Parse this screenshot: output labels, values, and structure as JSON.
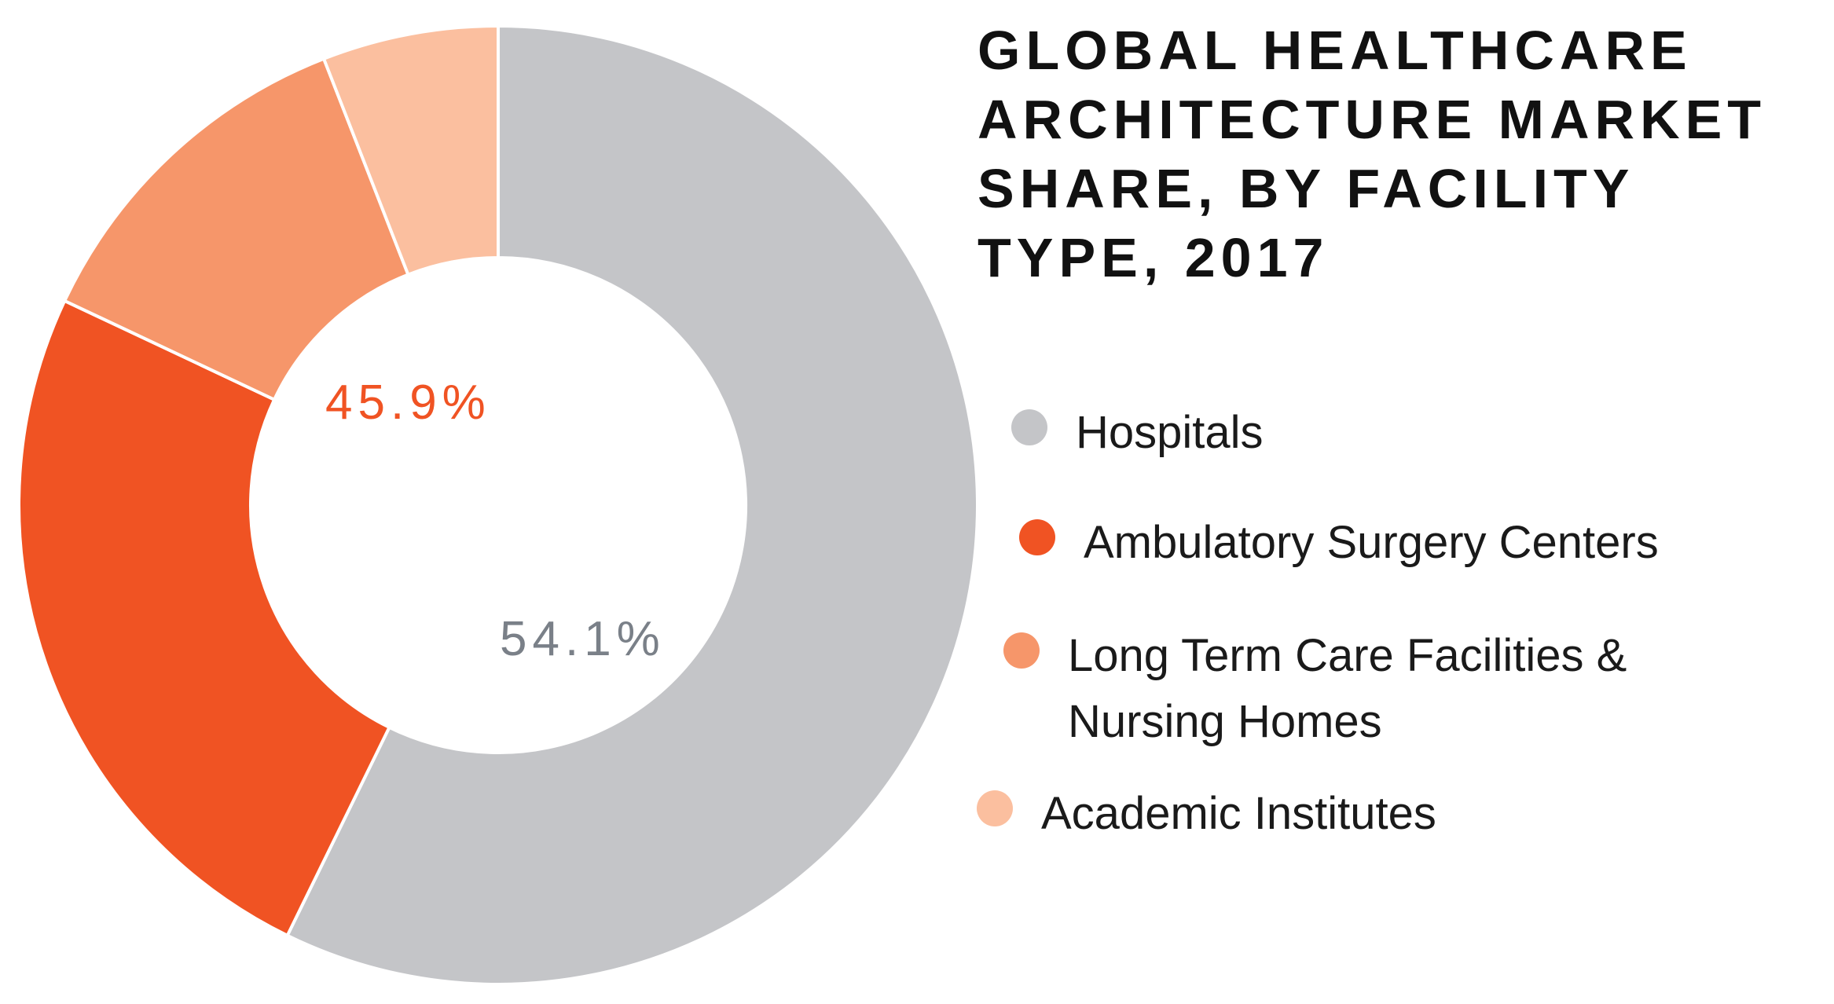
{
  "chart_data": {
    "type": "pie",
    "title": "GLOBAL HEALTHCARE\nARCHITECTURE MARKET\nSHARE, BY FACILITY\nTYPE, 2017",
    "series": [
      {
        "name": "Hospitals",
        "categories": [
          "Hospitals",
          "Ambulatory Surgery Centers",
          "Long Term Care Facilities & Nursing Homes",
          "Academic Institutes"
        ],
        "values": [
          54.1,
          23.4,
          11.4,
          5.6
        ]
      }
    ],
    "colors": [
      "#c4c5c8",
      "#f05323",
      "#f6966a",
      "#fbbf9f"
    ],
    "data_labels": [
      {
        "text": "54.1%",
        "color": "#7a8088"
      },
      {
        "text": "45.9%",
        "color": "#f05323"
      }
    ],
    "legend": {
      "placement": "right",
      "items": [
        {
          "label": "Hospitals",
          "color": "#c4c5c8"
        },
        {
          "label": "Ambulatory Surgery Centers",
          "color": "#f05323"
        },
        {
          "label": "Long Term Care Facilities &\nNursing Homes",
          "color": "#f6966a"
        },
        {
          "label": "Academic Institutes",
          "color": "#fbbf9f"
        }
      ]
    }
  }
}
